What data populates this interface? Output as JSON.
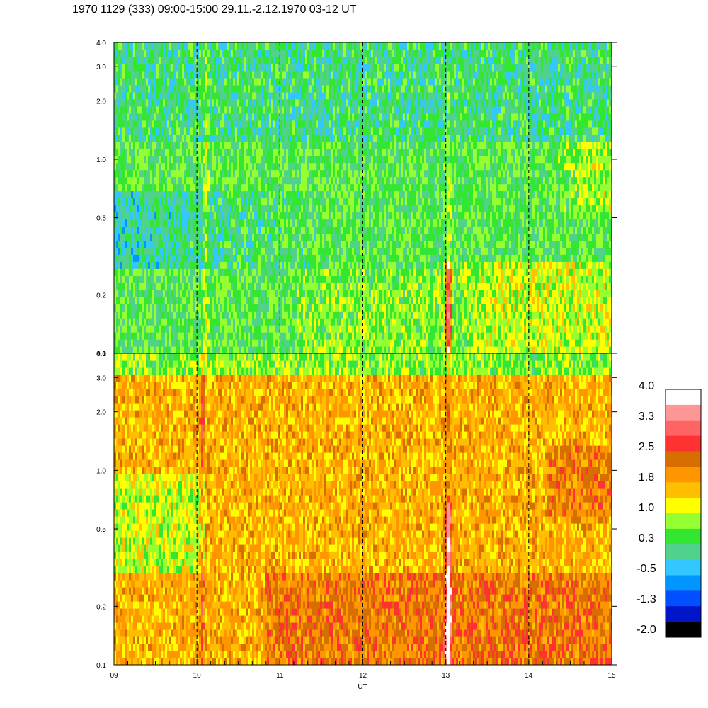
{
  "title": "1970 1129 (333) 09:00-15:00 29.11.-2.12.1970  03-12 UT",
  "chart_data": {
    "type": "heatmap",
    "title": "1970 1129 (333) 09:00-15:00 29.11.-2.12.1970  03-12 UT",
    "xlabel": "UT",
    "x_ticks": [
      "09",
      "10",
      "11",
      "12",
      "13",
      "14",
      "15"
    ],
    "x_range": [
      9,
      15
    ],
    "vertical_dashed_lines_at": [
      10,
      11,
      12,
      13,
      14
    ],
    "y_scale": "log",
    "y_range": [
      0.1,
      4.0
    ],
    "panels": [
      {
        "name": "upper",
        "y_ticks": [
          "0.1",
          "0.2",
          "0.5",
          "1.0",
          "2.0",
          "3.0",
          "4.0"
        ],
        "dominant_levels": "green / cyan, with blue patches near 0.3-0.6 from 09-11 UT and yellow near 0.15-0.3 after 13 UT",
        "features": [
          "bright orange streak at 13 UT below 0.3"
        ]
      },
      {
        "name": "lower",
        "y_ticks": [
          "0.1",
          "0.2",
          "0.5",
          "1.0",
          "2.0",
          "3.0",
          "4.0"
        ],
        "dominant_levels": "orange / yellow throughout, greener at top (3-4) and around 0.3-1.0 near 09-10 UT",
        "features": [
          "red streak at 13 UT below 0.7"
        ]
      }
    ],
    "colorbar": {
      "tick_labels": [
        "4.0",
        "3.3",
        "2.5",
        "1.8",
        "1.0",
        "0.3",
        "-0.5",
        "-1.3",
        "-2.0"
      ],
      "colors_top_to_bottom": [
        "#ffffff",
        "#ff9696",
        "#ff6464",
        "#ff3232",
        "#d76e00",
        "#ff9600",
        "#ffbe00",
        "#ffff00",
        "#96ff32",
        "#32e632",
        "#50d28c",
        "#32c8ff",
        "#0096ff",
        "#0050ff",
        "#0014c8",
        "#000000"
      ]
    }
  }
}
